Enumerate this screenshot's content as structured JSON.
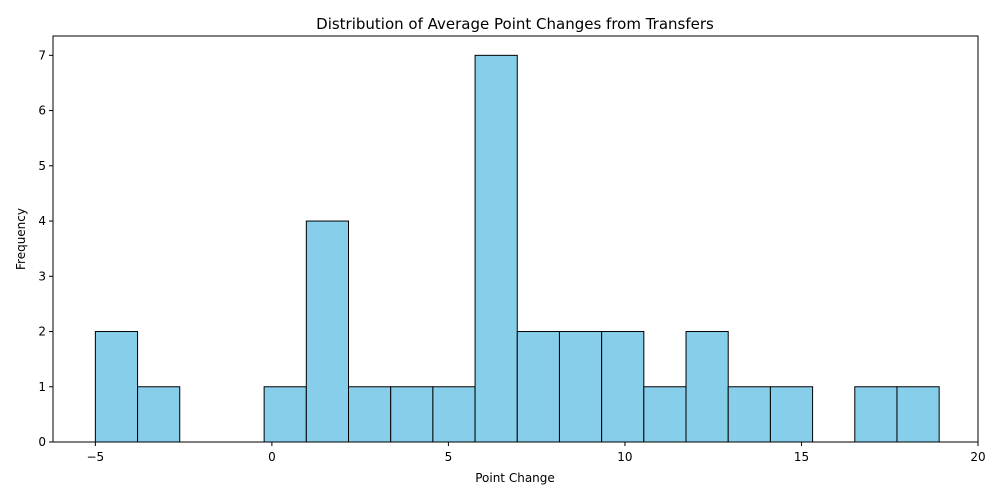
{
  "chart_data": {
    "type": "bar",
    "title": "Distribution of Average Point Changes from Transfers",
    "xlabel": "Point Change",
    "ylabel": "Frequency",
    "xlim": [
      -6.2,
      20.0
    ],
    "ylim": [
      0,
      7.35
    ],
    "bin_start": -5.0,
    "bin_end": 18.9,
    "bin_counts": [
      2,
      1,
      0,
      0,
      1,
      4,
      1,
      1,
      1,
      7,
      2,
      2,
      2,
      1,
      2,
      1,
      1,
      0,
      1,
      1
    ],
    "x_ticks": [
      -5,
      0,
      5,
      10,
      15,
      20
    ],
    "y_ticks": [
      0,
      1,
      2,
      3,
      4,
      5,
      6,
      7
    ],
    "colors": {
      "bar_fill": "#87ceeb",
      "bar_edge": "#000000"
    }
  }
}
